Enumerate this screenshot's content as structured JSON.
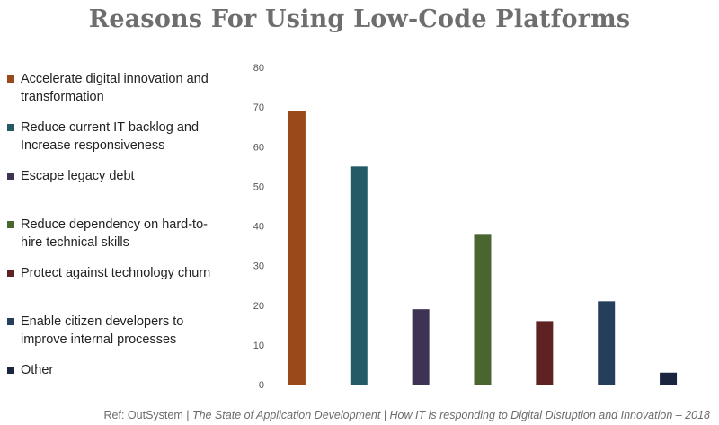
{
  "title": "Reasons For Using Low-Code Platforms",
  "legend": [
    {
      "label": "Accelerate digital innovation and transformation",
      "color": "#9a4a1a"
    },
    {
      "label": "Reduce current IT backlog and Increase responsiveness",
      "color": "#235a66"
    },
    {
      "label": "Escape legacy debt",
      "color": "#3e3352"
    },
    {
      "label": "Reduce dependency on hard-to-hire technical skills",
      "color": "#4a6630"
    },
    {
      "label": "Protect against technology churn",
      "color": "#5e2222"
    },
    {
      "label": "Enable citizen developers to improve internal processes",
      "color": "#253e5c"
    },
    {
      "label": "Other",
      "color": "#1a2540"
    }
  ],
  "footer": {
    "ref": "Ref: OutSystem | ",
    "source": "The State of Application Development | How IT is responding to Digital Disruption and Innovation – 2018"
  },
  "chart_data": {
    "type": "bar",
    "categories": [
      "Accelerate digital innovation and transformation",
      "Reduce current IT backlog and Increase responsiveness",
      "Escape legacy debt",
      "Reduce dependency on hard-to-hire technical skills",
      "Protect against technology churn",
      "Enable citizen developers to improve internal processes",
      "Other"
    ],
    "values": [
      69,
      55,
      19,
      38,
      16,
      21,
      3
    ],
    "colors": [
      "#9a4a1a",
      "#235a66",
      "#3e3352",
      "#4a6630",
      "#5e2222",
      "#253e5c",
      "#1a2540"
    ],
    "ylim": [
      0,
      80
    ],
    "yticks": [
      "0",
      "10",
      "20",
      "30",
      "40",
      "50",
      "60",
      "70",
      "80"
    ],
    "grid": false,
    "legend_position": "left"
  }
}
